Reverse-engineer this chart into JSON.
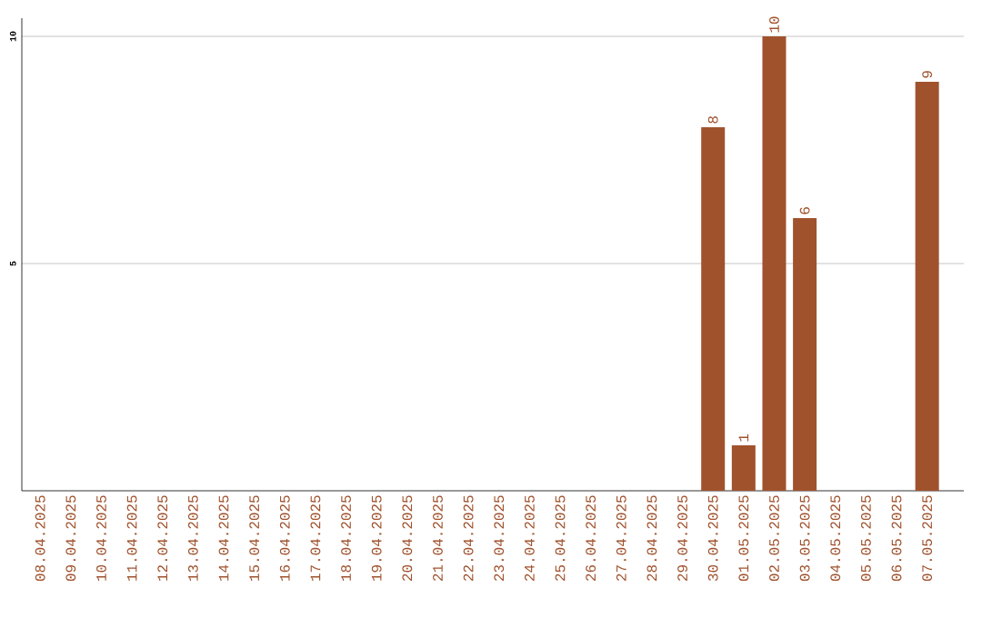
{
  "chart_data": {
    "type": "bar",
    "categories": [
      "08.04.2025",
      "09.04.2025",
      "10.04.2025",
      "11.04.2025",
      "12.04.2025",
      "13.04.2025",
      "14.04.2025",
      "15.04.2025",
      "16.04.2025",
      "17.04.2025",
      "18.04.2025",
      "19.04.2025",
      "20.04.2025",
      "21.04.2025",
      "22.04.2025",
      "23.04.2025",
      "24.04.2025",
      "25.04.2025",
      "26.04.2025",
      "27.04.2025",
      "28.04.2025",
      "29.04.2025",
      "30.04.2025",
      "01.05.2025",
      "02.05.2025",
      "03.05.2025",
      "04.05.2025",
      "05.05.2025",
      "06.05.2025",
      "07.05.2025"
    ],
    "values": [
      0,
      0,
      0,
      0,
      0,
      0,
      0,
      0,
      0,
      0,
      0,
      0,
      0,
      0,
      0,
      0,
      0,
      0,
      0,
      0,
      0,
      0,
      8,
      1,
      10,
      6,
      0,
      0,
      0,
      9
    ],
    "value_labels": [
      null,
      null,
      null,
      null,
      null,
      null,
      null,
      null,
      null,
      null,
      null,
      null,
      null,
      null,
      null,
      null,
      null,
      null,
      null,
      null,
      null,
      null,
      "8",
      "1",
      "10",
      "6",
      null,
      null,
      null,
      "9"
    ],
    "color": "#a0522d",
    "ylim": [
      0,
      10.4
    ],
    "yticks": [
      5,
      10
    ],
    "grid": "y"
  }
}
